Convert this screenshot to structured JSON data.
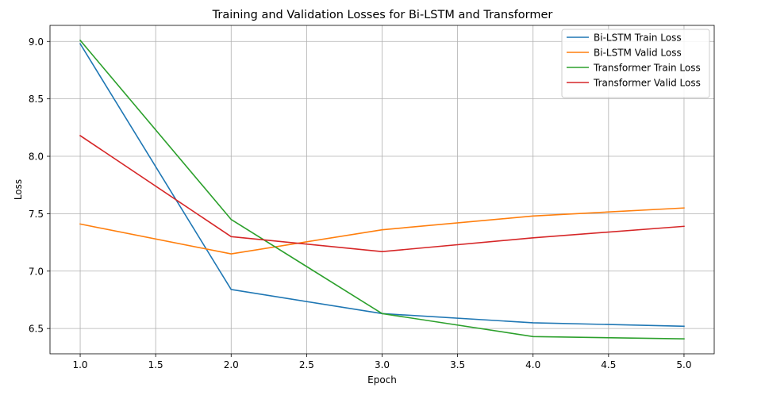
{
  "chart_data": {
    "type": "line",
    "title": "Training and Validation Losses for Bi-LSTM and Transformer",
    "xlabel": "Epoch",
    "ylabel": "Loss",
    "x": [
      1,
      2,
      3,
      4,
      5
    ],
    "xlim": [
      0.8,
      5.2
    ],
    "ylim": [
      6.28,
      9.14
    ],
    "xticks": [
      1.0,
      1.5,
      2.0,
      2.5,
      3.0,
      3.5,
      4.0,
      4.5,
      5.0
    ],
    "xtick_labels": [
      "1.0",
      "1.5",
      "2.0",
      "2.5",
      "3.0",
      "3.5",
      "4.0",
      "4.5",
      "5.0"
    ],
    "yticks": [
      6.5,
      7.0,
      7.5,
      8.0,
      8.5,
      9.0
    ],
    "ytick_labels": [
      "6.5",
      "7.0",
      "7.5",
      "8.0",
      "8.5",
      "9.0"
    ],
    "grid": true,
    "legend_position": "top-right",
    "series": [
      {
        "name": "Bi-LSTM Train Loss",
        "color": "#1f77b4",
        "values": [
          8.98,
          6.84,
          6.63,
          6.55,
          6.52
        ]
      },
      {
        "name": "Bi-LSTM Valid Loss",
        "color": "#ff7f0e",
        "values": [
          7.41,
          7.15,
          7.36,
          7.48,
          7.55
        ]
      },
      {
        "name": "Transformer Train Loss",
        "color": "#2ca02c",
        "values": [
          9.01,
          7.45,
          6.63,
          6.43,
          6.41
        ]
      },
      {
        "name": "Transformer Valid Loss",
        "color": "#d62728",
        "values": [
          8.18,
          7.3,
          7.17,
          7.29,
          7.39
        ]
      }
    ]
  }
}
